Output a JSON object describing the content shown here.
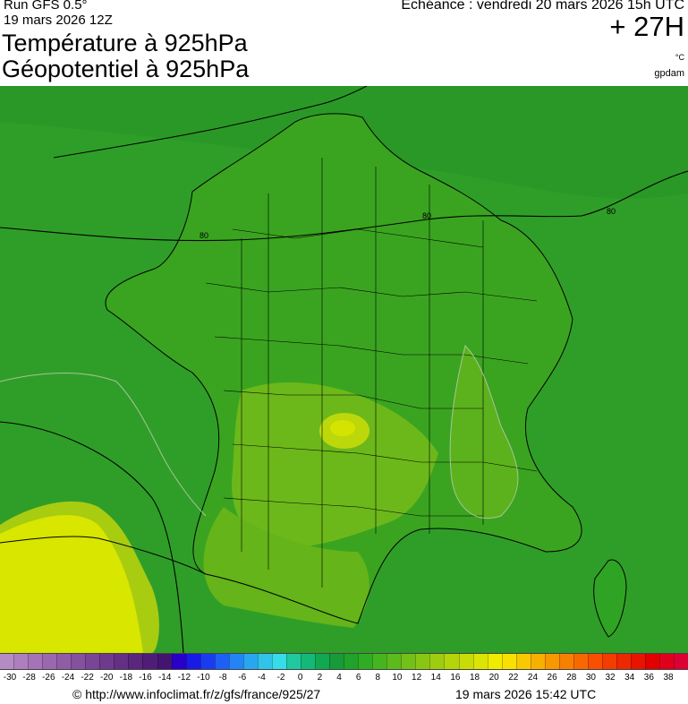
{
  "header": {
    "run": "Run GFS 0.5°",
    "run_date": "19 mars 2026 12Z",
    "title_temperature": "Température à 925hPa",
    "title_geopotential": "Géopotentiel à 925hPa",
    "valid_time": "Echéance : vendredi 20 mars 2026 15h UTC",
    "lead_time": "+ 27H",
    "unit": "°C",
    "brand": "gpdam"
  },
  "map": {
    "geopotential_labels": [
      "80",
      "80",
      "80"
    ],
    "colors": {
      "sea": "#2f9e28",
      "land": "#3da61f",
      "warm": "#7ec018",
      "hot": "#c8e000",
      "southwest": "#dbe800"
    }
  },
  "legend": {
    "ticks": [
      "-30",
      "-28",
      "-26",
      "-24",
      "-22",
      "-20",
      "-18",
      "-16",
      "-14",
      "-12",
      "-10",
      "-8",
      "-6",
      "-4",
      "-2",
      "0",
      "2",
      "4",
      "6",
      "8",
      "10",
      "12",
      "14",
      "16",
      "18",
      "20",
      "22",
      "24",
      "26",
      "28",
      "30",
      "32",
      "34",
      "36",
      "38"
    ],
    "colors": [
      "#b58bc4",
      "#ad7fbd",
      "#a474b6",
      "#9a68ae",
      "#905ca6",
      "#85509e",
      "#7a4596",
      "#6f3a8d",
      "#642f85",
      "#5a267e",
      "#4f1d77",
      "#441570",
      "#2a00c8",
      "#1a1ae6",
      "#1a3cf0",
      "#1e5ff5",
      "#2484f5",
      "#2aa6f0",
      "#30c4e8",
      "#36dce8",
      "#20c8a0",
      "#14b878",
      "#10a850",
      "#169a3a",
      "#21a22a",
      "#30ac24",
      "#46b420",
      "#5cba1c",
      "#72c018",
      "#88c614",
      "#9ecc10",
      "#b4d40c",
      "#c8dc08",
      "#dce404",
      "#f0ec00",
      "#f8e000",
      "#f8c800",
      "#f8b000",
      "#f89800",
      "#f88000",
      "#f86800",
      "#f85000",
      "#f43c00",
      "#ee2800",
      "#e81400",
      "#e20000",
      "#e0001c",
      "#dc0034"
    ]
  },
  "footer": {
    "source": "© http://www.infoclimat.fr/z/gfs/france/925/27",
    "generated": "19 mars 2026 15:42 UTC"
  }
}
